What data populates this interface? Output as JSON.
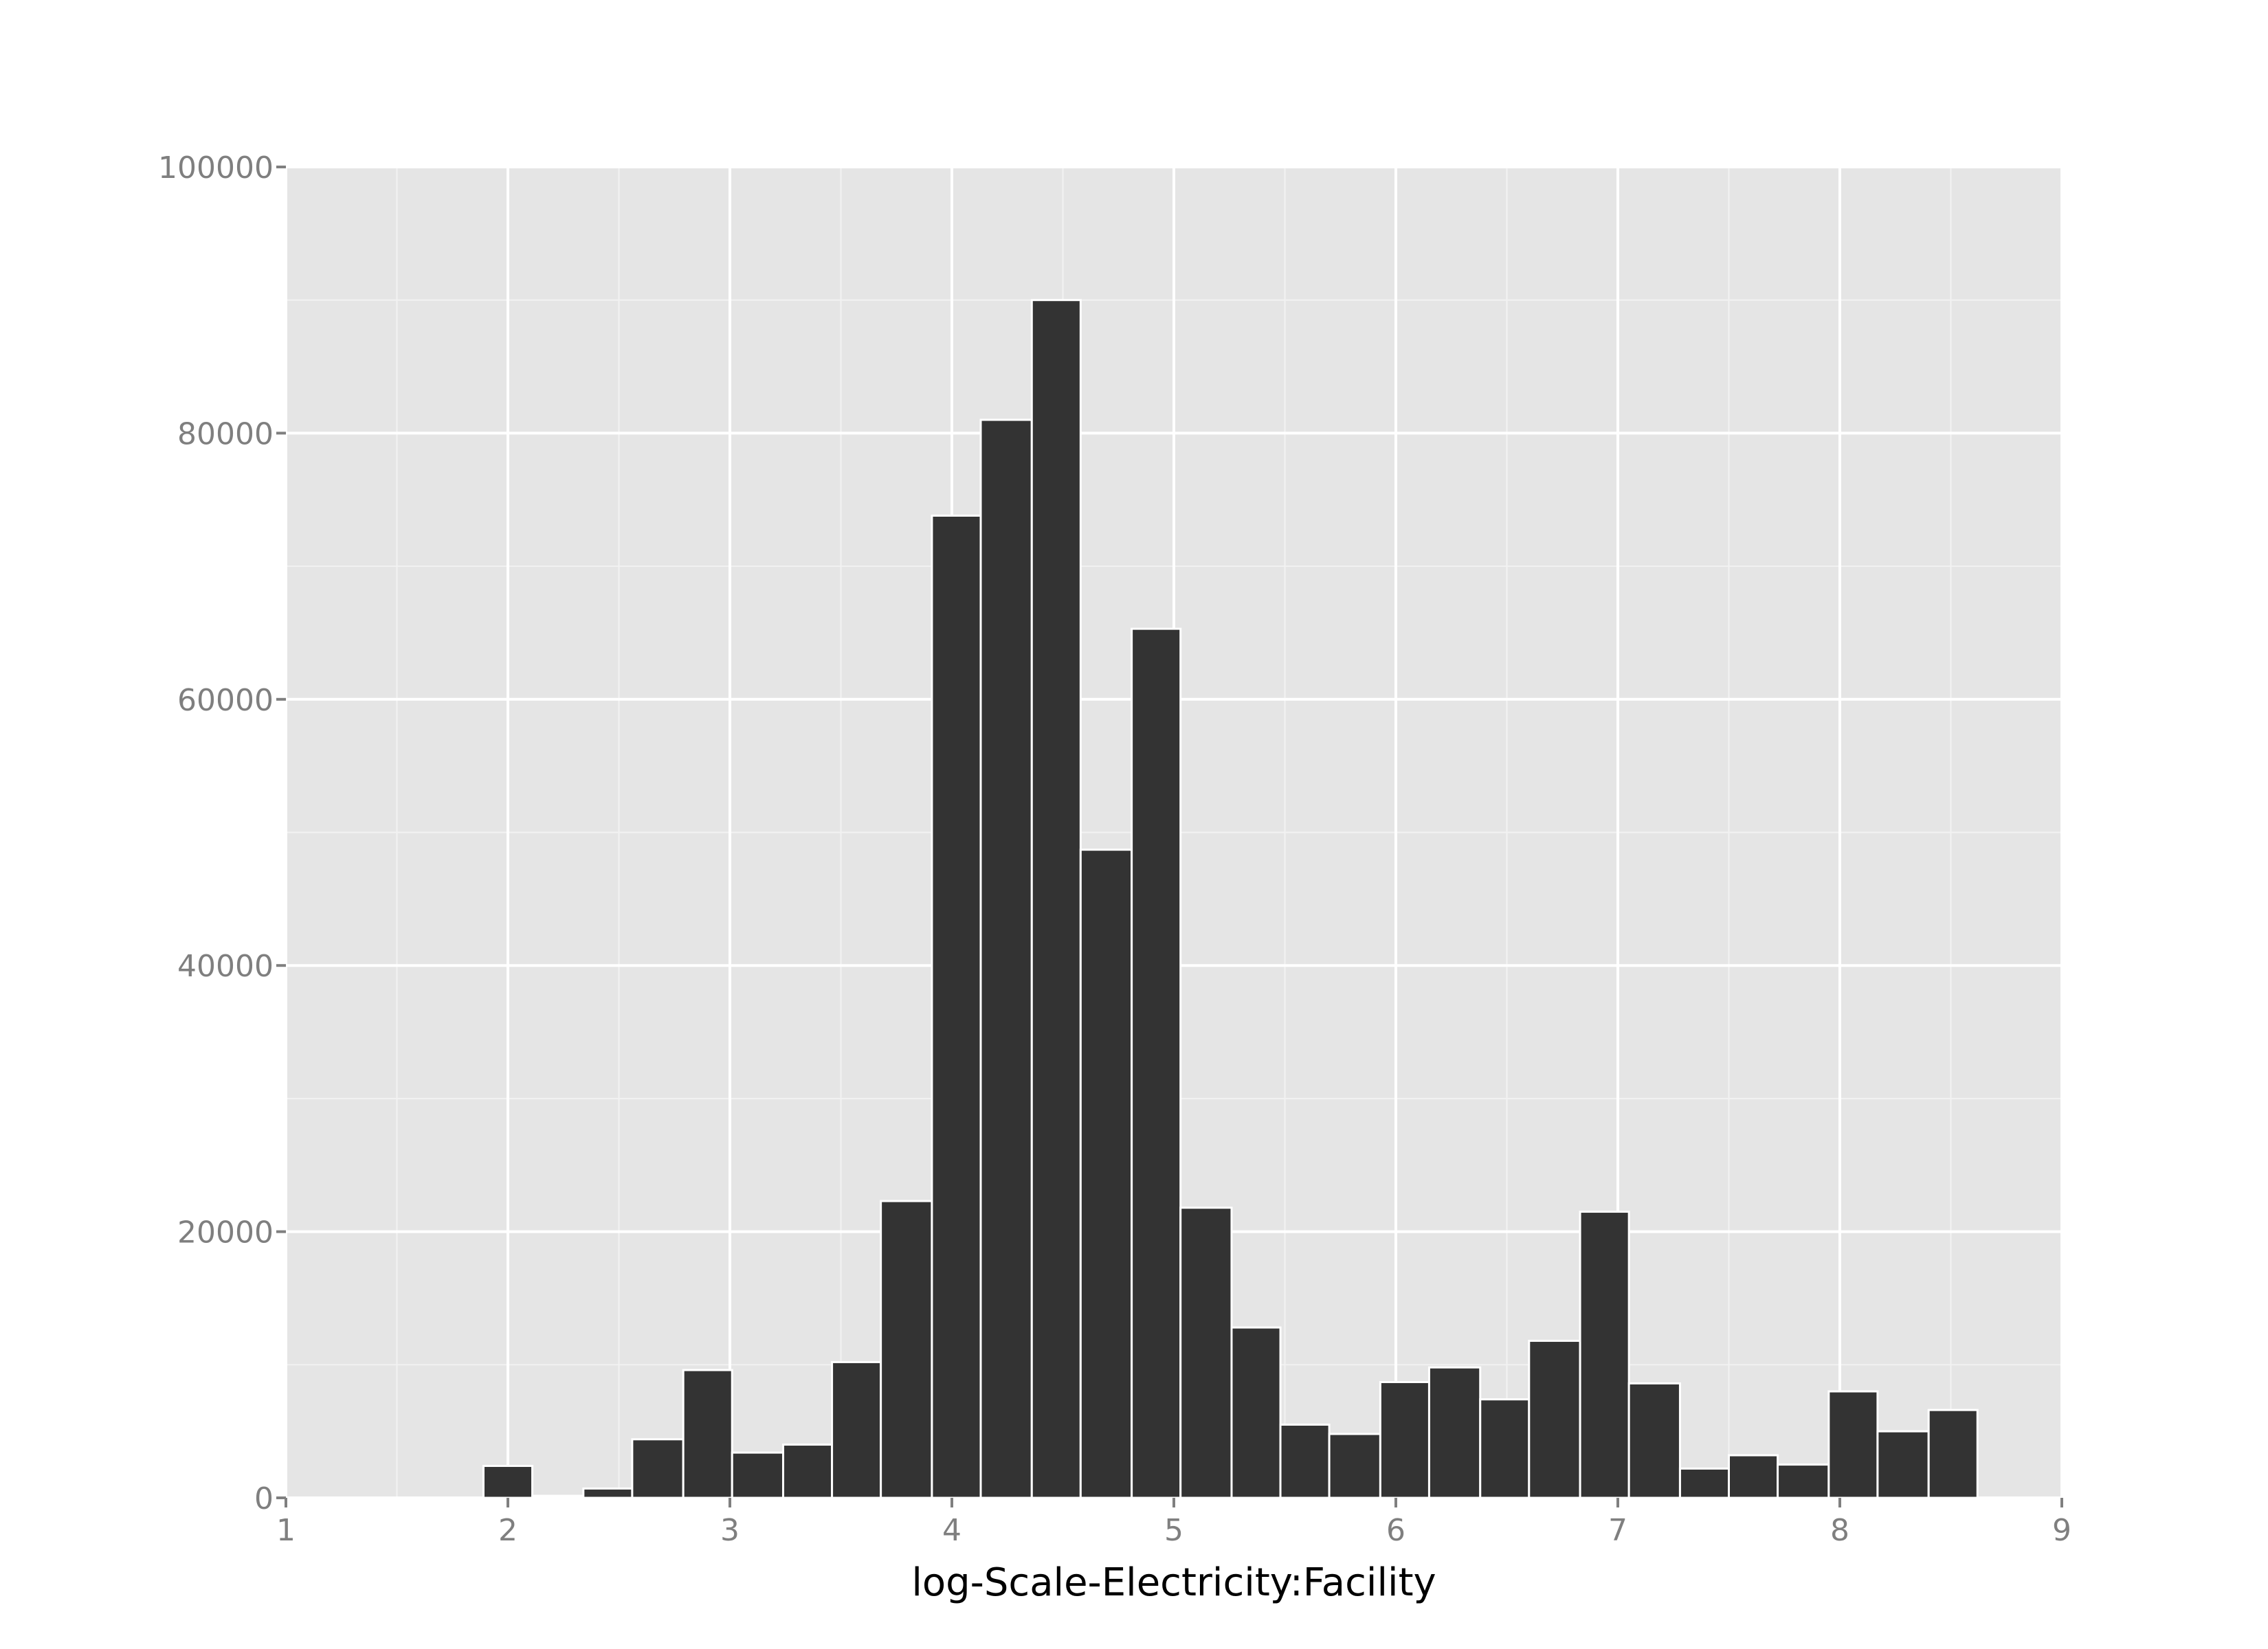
{
  "chart_data": {
    "type": "bar",
    "title": "",
    "xlabel": "log-Scale-Electricity:Facility",
    "ylabel": "",
    "xlim": [
      1,
      9
    ],
    "ylim": [
      0,
      100000
    ],
    "x_ticks": [
      "1",
      "2",
      "3",
      "4",
      "5",
      "6",
      "7",
      "8",
      "9"
    ],
    "y_ticks": [
      "0",
      "20000",
      "40000",
      "60000",
      "80000",
      "100000"
    ],
    "grid": true,
    "legend": "none",
    "colors": {
      "panel": "#e5e5e5",
      "grid_major": "#ffffff",
      "grid_minor": "#f2f2f2",
      "bar_fill": "#333333",
      "bar_outline": "#ffffff",
      "tick_text": "#7f7f7f",
      "tick_mark": "#7f7f7f",
      "title_text": "#000000"
    },
    "bins": [
      {
        "x0": 1.89,
        "x1": 2.11,
        "count": 2400
      },
      {
        "x0": 2.11,
        "x1": 2.34,
        "count": 150
      },
      {
        "x0": 2.34,
        "x1": 2.56,
        "count": 700
      },
      {
        "x0": 2.56,
        "x1": 2.79,
        "count": 4400
      },
      {
        "x0": 2.79,
        "x1": 3.01,
        "count": 9600
      },
      {
        "x0": 3.01,
        "x1": 3.24,
        "count": 3400
      },
      {
        "x0": 3.24,
        "x1": 3.46,
        "count": 4000
      },
      {
        "x0": 3.46,
        "x1": 3.68,
        "count": 10200
      },
      {
        "x0": 3.68,
        "x1": 3.91,
        "count": 22300
      },
      {
        "x0": 3.91,
        "x1": 4.13,
        "count": 73800
      },
      {
        "x0": 4.13,
        "x1": 4.36,
        "count": 81000
      },
      {
        "x0": 4.36,
        "x1": 4.58,
        "count": 90000
      },
      {
        "x0": 4.58,
        "x1": 4.81,
        "count": 48700
      },
      {
        "x0": 4.81,
        "x1": 5.03,
        "count": 65300
      },
      {
        "x0": 5.03,
        "x1": 5.26,
        "count": 21800
      },
      {
        "x0": 5.26,
        "x1": 5.48,
        "count": 12800
      },
      {
        "x0": 5.48,
        "x1": 5.7,
        "count": 5500
      },
      {
        "x0": 5.7,
        "x1": 5.93,
        "count": 4800
      },
      {
        "x0": 5.93,
        "x1": 6.15,
        "count": 8700
      },
      {
        "x0": 6.15,
        "x1": 6.38,
        "count": 9800
      },
      {
        "x0": 6.38,
        "x1": 6.6,
        "count": 7400
      },
      {
        "x0": 6.6,
        "x1": 6.83,
        "count": 11800
      },
      {
        "x0": 6.83,
        "x1": 7.05,
        "count": 21500
      },
      {
        "x0": 7.05,
        "x1": 7.28,
        "count": 8600
      },
      {
        "x0": 7.28,
        "x1": 7.5,
        "count": 2200
      },
      {
        "x0": 7.5,
        "x1": 7.72,
        "count": 3200
      },
      {
        "x0": 7.72,
        "x1": 7.95,
        "count": 2500
      },
      {
        "x0": 7.95,
        "x1": 8.17,
        "count": 8000
      },
      {
        "x0": 8.17,
        "x1": 8.4,
        "count": 5000
      },
      {
        "x0": 8.4,
        "x1": 8.62,
        "count": 6600
      }
    ]
  }
}
